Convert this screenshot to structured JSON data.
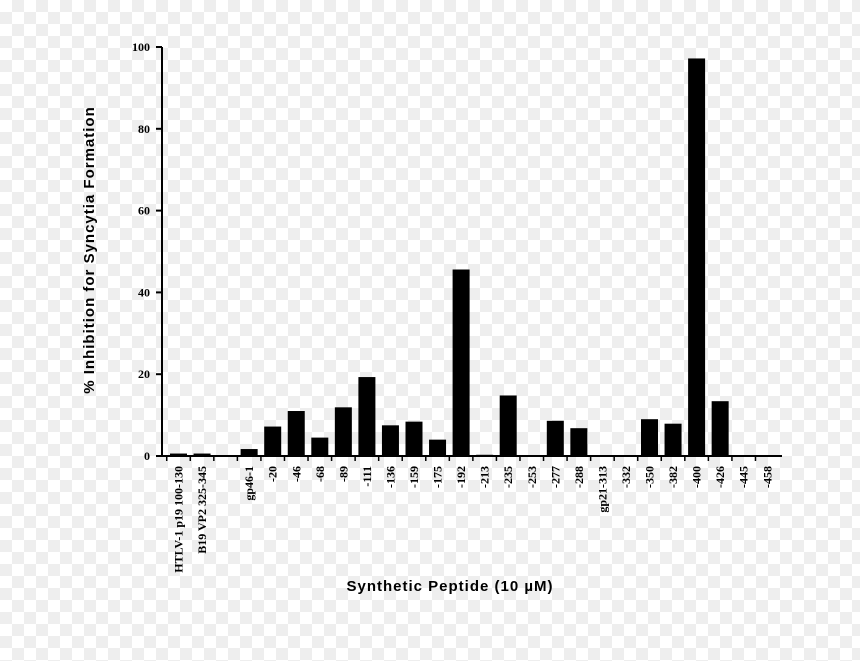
{
  "chart_data": {
    "type": "bar",
    "xlabel": "Synthetic Peptide (10 µM)",
    "ylabel": "% Inhibition for Syncytia Formation",
    "ylim": [
      0,
      100
    ],
    "yticks": [
      "0",
      "20",
      "40",
      "60",
      "80",
      "100"
    ],
    "bar_color": "#000000",
    "categories": [
      "HTLV-1 p19 100-130",
      "B19 VP2 325-345",
      "",
      "gp46-1",
      "-20",
      "-46",
      "-68",
      "-89",
      "-111",
      "-136",
      "-159",
      "-175",
      "-192",
      "-213",
      "-235",
      "-253",
      "-277",
      "-288",
      "gp21-313",
      "-332",
      "-350",
      "-382",
      "-400",
      "-426",
      "-445",
      "-458"
    ],
    "values": [
      0.6,
      0.6,
      0,
      1.7,
      7.2,
      11.0,
      4.5,
      11.9,
      19.3,
      7.5,
      8.4,
      4.0,
      45.6,
      0.3,
      14.8,
      0.2,
      8.6,
      6.8,
      0,
      0.1,
      9.0,
      7.9,
      97.2,
      13.4,
      0.2,
      0.2
    ]
  }
}
